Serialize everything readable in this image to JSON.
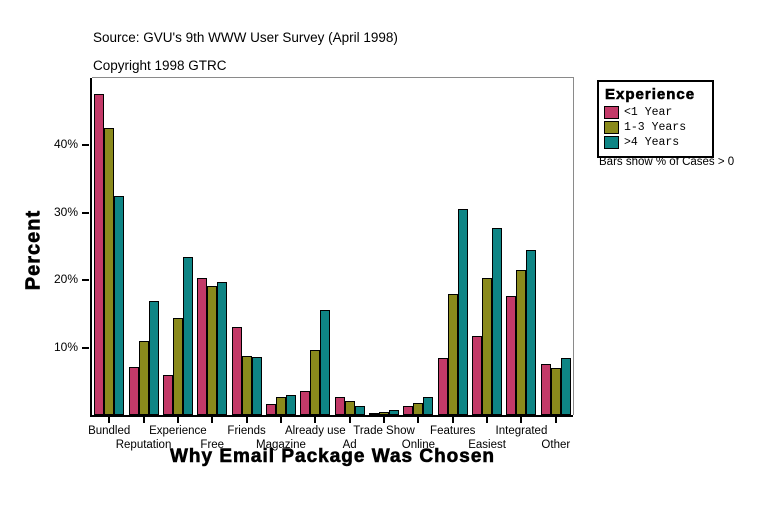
{
  "header": {
    "source_line": "Source: GVU's 9th WWW User Survey (April 1998)",
    "copyright_line": "Copyright 1998 GTRC"
  },
  "legend": {
    "title": "Experience",
    "note": "Bars show % of Cases > 0"
  },
  "chart_data": {
    "type": "bar",
    "title": "Why Email Package Was Chosen",
    "xlabel": "Why Email Package Was Chosen",
    "ylabel": "Percent",
    "ylim": [
      0,
      50
    ],
    "yticks": [
      10,
      20,
      30,
      40
    ],
    "ytick_suffix": "%",
    "grid": false,
    "legend_position": "right",
    "categories": [
      "Bundled",
      "Reputation",
      "Experience",
      "Free",
      "Friends",
      "Magazine",
      "Already use",
      "Ad",
      "Trade Show",
      "Online",
      "Features",
      "Easiest",
      "Integrated",
      "Other"
    ],
    "series": [
      {
        "name": "<1 Year",
        "color": "#c33a68",
        "values": [
          47.6,
          7.1,
          6.0,
          20.3,
          13.0,
          1.7,
          3.6,
          2.7,
          0.2,
          1.4,
          8.5,
          11.7,
          17.6,
          7.6
        ]
      },
      {
        "name": "1-3 Years",
        "color": "#8a8a1c",
        "values": [
          42.6,
          11.0,
          14.4,
          19.2,
          8.7,
          2.7,
          9.7,
          2.1,
          0.4,
          1.8,
          17.9,
          20.3,
          21.5,
          6.9
        ]
      },
      {
        "name": ">4 Years",
        "color": "#0e8585",
        "values": [
          32.5,
          16.9,
          23.4,
          19.8,
          8.6,
          2.9,
          15.6,
          1.3,
          0.8,
          2.6,
          30.5,
          27.7,
          24.5,
          8.4
        ]
      }
    ]
  }
}
